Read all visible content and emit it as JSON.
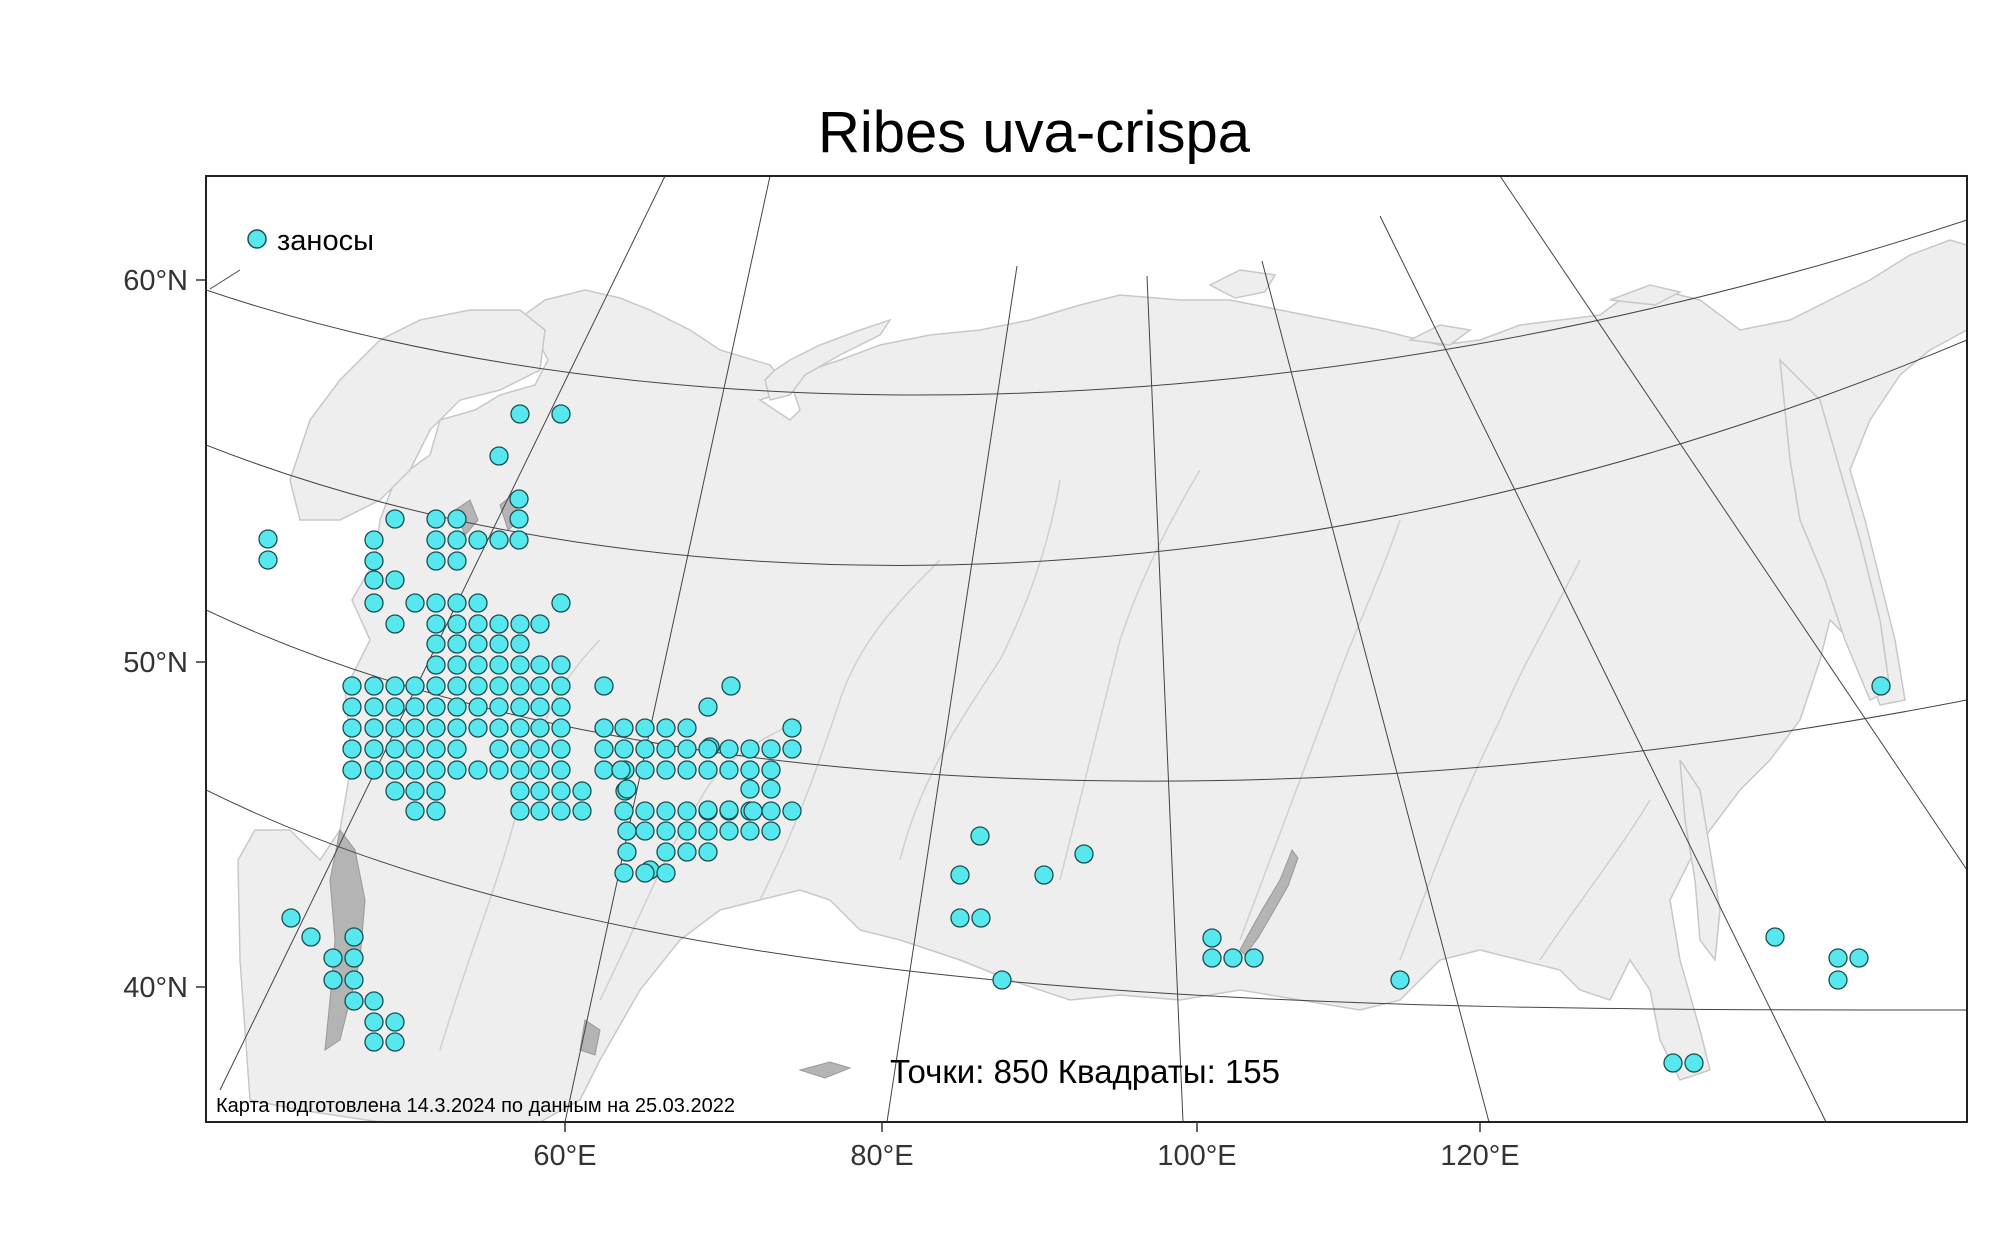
{
  "title": "Ribes uva-crispa",
  "legend": {
    "label": "заносы",
    "color": "#56e8ee"
  },
  "stats": "Точки: 850 Квадраты: 155",
  "credit": "Карта подготовлена 14.3.2024 по данным на 25.03.2022",
  "lat_labels": [
    "60°N",
    "50°N",
    "40°N"
  ],
  "lon_labels": [
    "60°E",
    "80°E",
    "100°E",
    "120°E"
  ],
  "colors": {
    "land": "#eeeeee",
    "land_stroke": "#c8c8c8",
    "rivers": "#d0d0d0",
    "lakes": "#b4b4b4",
    "graticule": "#444444",
    "marker_fill": "#56e8ee",
    "marker_stroke": "#1a4f52"
  }
}
